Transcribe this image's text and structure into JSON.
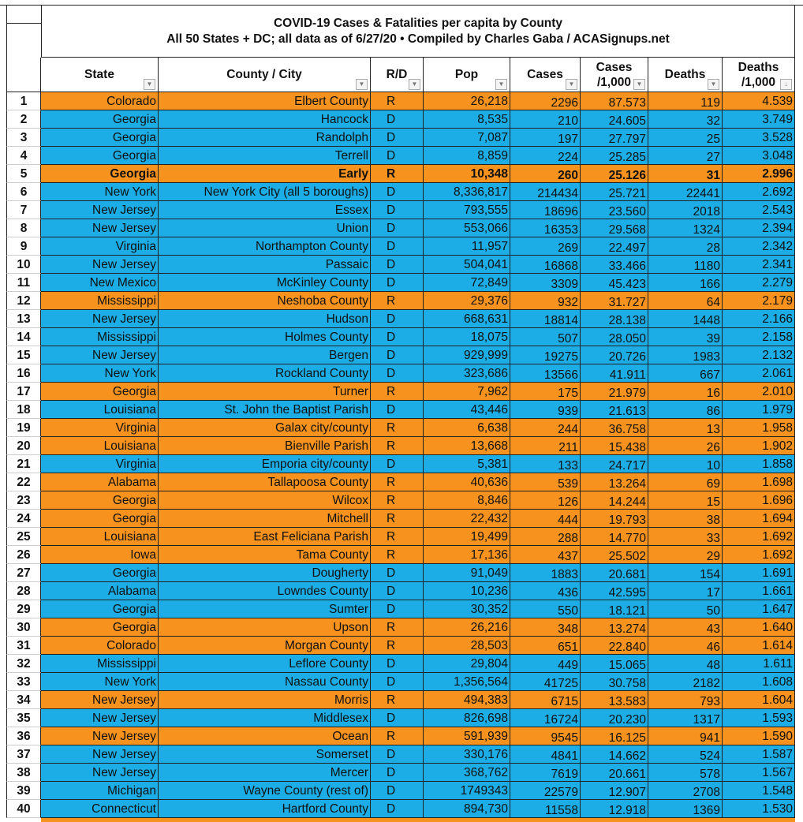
{
  "title": {
    "line1": "COVID-19 Cases & Fatalities per capita by County",
    "line2": "All 50 States + DC; all data as of 6/27/20  • Compiled by Charles Gaba / ACASignups.net"
  },
  "colors": {
    "R": "#F7921E",
    "D": "#1CADE6"
  },
  "columns": [
    {
      "label": "State",
      "filter_icon": "dropdown-icon"
    },
    {
      "label": "County / City",
      "filter_icon": "dropdown-icon"
    },
    {
      "label": "R/D",
      "filter_icon": "dropdown-icon"
    },
    {
      "label": "Pop",
      "filter_icon": "dropdown-icon"
    },
    {
      "label": "Cases",
      "filter_icon": "dropdown-icon"
    },
    {
      "label": "Cases /1,000",
      "filter_icon": "dropdown-icon"
    },
    {
      "label": "Deaths",
      "filter_icon": "dropdown-icon"
    },
    {
      "label": "Deaths /1,000",
      "filter_icon": "sort-descending-icon"
    }
  ],
  "rows": [
    [
      "1",
      "Colorado",
      "Elbert County",
      "R",
      "26,218",
      "2296",
      "87.573",
      "119",
      "4.539"
    ],
    [
      "2",
      "Georgia",
      "Hancock",
      "D",
      "8,535",
      "210",
      "24.605",
      "32",
      "3.749"
    ],
    [
      "3",
      "Georgia",
      "Randolph",
      "D",
      "7,087",
      "197",
      "27.797",
      "25",
      "3.528"
    ],
    [
      "4",
      "Georgia",
      "Terrell",
      "D",
      "8,859",
      "224",
      "25.285",
      "27",
      "3.048"
    ],
    [
      "5",
      "Georgia",
      "Early",
      "R",
      "10,348",
      "260",
      "25.126",
      "31",
      "2.996"
    ],
    [
      "6",
      "New York",
      "New York City (all 5 boroughs)",
      "D",
      "8,336,817",
      "214434",
      "25.721",
      "22441",
      "2.692"
    ],
    [
      "7",
      "New Jersey",
      "Essex",
      "D",
      "793,555",
      "18696",
      "23.560",
      "2018",
      "2.543"
    ],
    [
      "8",
      "New Jersey",
      "Union",
      "D",
      "553,066",
      "16353",
      "29.568",
      "1324",
      "2.394"
    ],
    [
      "9",
      "Virginia",
      "Northampton County",
      "D",
      "11,957",
      "269",
      "22.497",
      "28",
      "2.342"
    ],
    [
      "10",
      "New Jersey",
      "Passaic",
      "D",
      "504,041",
      "16868",
      "33.466",
      "1180",
      "2.341"
    ],
    [
      "11",
      "New Mexico",
      "McKinley County",
      "D",
      "72,849",
      "3309",
      "45.423",
      "166",
      "2.279"
    ],
    [
      "12",
      "Mississippi",
      "Neshoba County",
      "R",
      "29,376",
      "932",
      "31.727",
      "64",
      "2.179"
    ],
    [
      "13",
      "New Jersey",
      "Hudson",
      "D",
      "668,631",
      "18814",
      "28.138",
      "1448",
      "2.166"
    ],
    [
      "14",
      "Mississippi",
      "Holmes County",
      "D",
      "18,075",
      "507",
      "28.050",
      "39",
      "2.158"
    ],
    [
      "15",
      "New Jersey",
      "Bergen",
      "D",
      "929,999",
      "19275",
      "20.726",
      "1983",
      "2.132"
    ],
    [
      "16",
      "New York",
      "Rockland County",
      "D",
      "323,686",
      "13566",
      "41.911",
      "667",
      "2.061"
    ],
    [
      "17",
      "Georgia",
      "Turner",
      "R",
      "7,962",
      "175",
      "21.979",
      "16",
      "2.010"
    ],
    [
      "18",
      "Louisiana",
      "St. John the Baptist Parish",
      "D",
      "43,446",
      "939",
      "21.613",
      "86",
      "1.979"
    ],
    [
      "19",
      "Virginia",
      "Galax city/county",
      "R",
      "6,638",
      "244",
      "36.758",
      "13",
      "1.958"
    ],
    [
      "20",
      "Louisiana",
      "Bienville Parish",
      "R",
      "13,668",
      "211",
      "15.438",
      "26",
      "1.902"
    ],
    [
      "21",
      "Virginia",
      "Emporia city/county",
      "D",
      "5,381",
      "133",
      "24.717",
      "10",
      "1.858"
    ],
    [
      "22",
      "Alabama",
      "Tallapoosa County",
      "R",
      "40,636",
      "539",
      "13.264",
      "69",
      "1.698"
    ],
    [
      "23",
      "Georgia",
      "Wilcox",
      "R",
      "8,846",
      "126",
      "14.244",
      "15",
      "1.696"
    ],
    [
      "24",
      "Georgia",
      "Mitchell",
      "R",
      "22,432",
      "444",
      "19.793",
      "38",
      "1.694"
    ],
    [
      "25",
      "Louisiana",
      "East Feliciana Parish",
      "R",
      "19,499",
      "288",
      "14.770",
      "33",
      "1.692"
    ],
    [
      "26",
      "Iowa",
      "Tama County",
      "R",
      "17,136",
      "437",
      "25.502",
      "29",
      "1.692"
    ],
    [
      "27",
      "Georgia",
      "Dougherty",
      "D",
      "91,049",
      "1883",
      "20.681",
      "154",
      "1.691"
    ],
    [
      "28",
      "Alabama",
      "Lowndes County",
      "D",
      "10,236",
      "436",
      "42.595",
      "17",
      "1.661"
    ],
    [
      "29",
      "Georgia",
      "Sumter",
      "D",
      "30,352",
      "550",
      "18.121",
      "50",
      "1.647"
    ],
    [
      "30",
      "Georgia",
      "Upson",
      "R",
      "26,216",
      "348",
      "13.274",
      "43",
      "1.640"
    ],
    [
      "31",
      "Colorado",
      "Morgan County",
      "R",
      "28,503",
      "651",
      "22.840",
      "46",
      "1.614"
    ],
    [
      "32",
      "Mississippi",
      "Leflore County",
      "D",
      "29,804",
      "449",
      "15.065",
      "48",
      "1.611"
    ],
    [
      "33",
      "New York",
      "Nassau County",
      "D",
      "1,356,564",
      "41725",
      "30.758",
      "2182",
      "1.608"
    ],
    [
      "34",
      "New Jersey",
      "Morris",
      "R",
      "494,383",
      "6715",
      "13.583",
      "793",
      "1.604"
    ],
    [
      "35",
      "New Jersey",
      "Middlesex",
      "D",
      "826,698",
      "16724",
      "20.230",
      "1317",
      "1.593"
    ],
    [
      "36",
      "New Jersey",
      "Ocean",
      "R",
      "591,939",
      "9545",
      "16.125",
      "941",
      "1.590"
    ],
    [
      "37",
      "New Jersey",
      "Somerset",
      "D",
      "330,176",
      "4841",
      "14.662",
      "524",
      "1.587"
    ],
    [
      "38",
      "New Jersey",
      "Mercer",
      "D",
      "368,762",
      "7619",
      "20.661",
      "578",
      "1.567"
    ],
    [
      "39",
      "Michigan",
      "Wayne County (rest of)",
      "D",
      "1749343",
      "22579",
      "12.907",
      "2708",
      "1.548"
    ],
    [
      "40",
      "Connecticut",
      "Hartford County",
      "D",
      "894,730",
      "11558",
      "12.918",
      "1369",
      "1.530"
    ]
  ],
  "bold_rows": [
    "5"
  ]
}
